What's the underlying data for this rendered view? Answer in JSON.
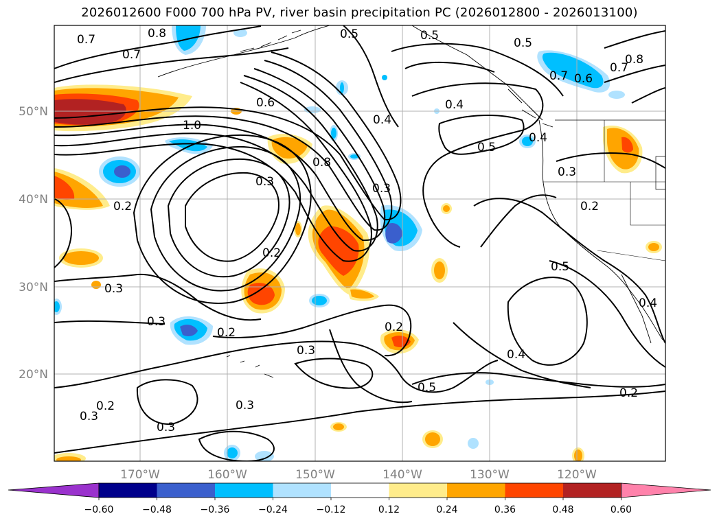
{
  "title": "2026012600 F000 700 hPa PV, river basin precipitation PC (2026012800 - 2026013100)",
  "map": {
    "lat_ticks": [
      "50°N",
      "40°N",
      "30°N",
      "20°N"
    ],
    "lon_ticks": [
      "170°W",
      "160°W",
      "150°W",
      "140°W",
      "130°W",
      "120°W"
    ],
    "contour_labels": [
      "0.8",
      "0.7",
      "0.7",
      "0.5",
      "0.5",
      "0.5",
      "0.7",
      "0.8",
      "0.7",
      "0.6",
      "0.6",
      "1.0",
      "0.4",
      "0.4",
      "0.5",
      "0.4",
      "0.3",
      "0.8",
      "0.3",
      "0.3",
      "0.2",
      "0.2",
      "0.2",
      "0.3",
      "0.3",
      "0.5",
      "0.2",
      "0.3",
      "0.4",
      "0.5",
      "0.3",
      "0.2",
      "0.3",
      "0.2",
      "0.3",
      "0.4",
      "0.2"
    ],
    "fill_colors": {
      "pos_0_12": "#ffec8b",
      "pos_0_24": "#ffa500",
      "pos_0_36": "#ff4500",
      "pos_0_48": "#b22222",
      "neg_0_12": "#b0e2ff",
      "neg_0_24": "#00bfff",
      "neg_0_36": "#3a5fcd"
    }
  },
  "colorbar": {
    "colors": [
      "#9a32cd",
      "#00008b",
      "#3a5fcd",
      "#00bfff",
      "#b0e2ff",
      "#ffffff",
      "#ffec8b",
      "#ffa500",
      "#ff4500",
      "#b22222",
      "#ff82ab"
    ],
    "ticks": [
      "−0.60",
      "−0.48",
      "−0.36",
      "−0.24",
      "−0.12",
      "0.12",
      "0.24",
      "0.36",
      "0.48",
      "0.60"
    ]
  }
}
